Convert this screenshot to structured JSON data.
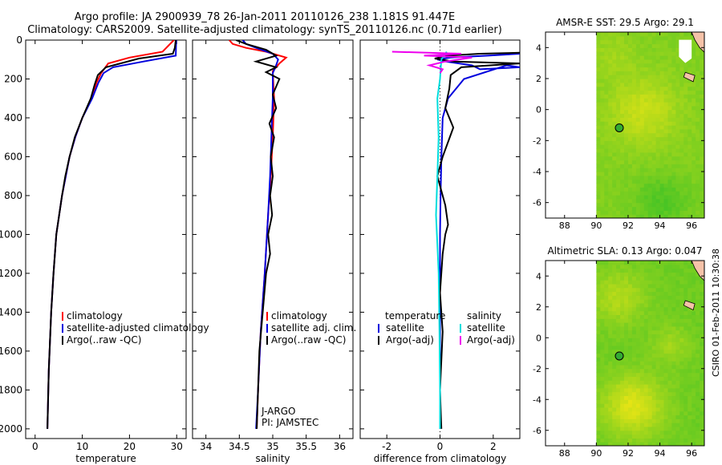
{
  "title_line1": "Argo profile: JA 2900939_78 26-Jan-2011 20110126_238 1.181S 91.447E",
  "title_line2": "Climatology: CARS2009. Satellite-adjusted climatology: synTS_20110126.nc (0.71d earlier)",
  "side_label": "CSIRO 01-Feb-2011 10:30:38",
  "chart_data": [
    {
      "type": "line",
      "xlabel": "temperature",
      "xlim": [
        -2,
        32
      ],
      "ylim": [
        0,
        2050
      ],
      "xticks": [
        0,
        10,
        20,
        30
      ],
      "yticks": [
        0,
        200,
        400,
        600,
        800,
        1000,
        1200,
        1400,
        1600,
        1800,
        2000
      ],
      "legend": [
        "climatology",
        "satellite-adjusted climatology",
        "Argo(..raw -QC)"
      ],
      "legend_placement": "lower-right",
      "series": [
        {
          "name": "climatology",
          "color": "#ff0000",
          "x": [
            29.4,
            27,
            20,
            15.5,
            14,
            13,
            12,
            10,
            8.5,
            7.3,
            6.5,
            5.7,
            4.5,
            3.9,
            3.4,
            2.9,
            2.6
          ],
          "y": [
            0,
            60,
            90,
            120,
            170,
            220,
            300,
            400,
            500,
            600,
            700,
            800,
            1000,
            1200,
            1400,
            1700,
            2000
          ]
        },
        {
          "name": "satellite-adjusted climatology",
          "color": "#0000dd",
          "x": [
            29.9,
            29.8,
            23,
            16.5,
            14.5,
            13.4,
            12.1,
            10,
            8.5,
            7.3,
            6.5,
            5.7,
            4.5,
            3.9,
            3.4,
            2.9,
            2.6
          ],
          "y": [
            0,
            80,
            110,
            140,
            170,
            220,
            300,
            400,
            500,
            600,
            700,
            800,
            1000,
            1200,
            1400,
            1700,
            2000
          ]
        },
        {
          "name": "Argo(..raw -QC)",
          "color": "#000000",
          "x": [
            29.8,
            29.6,
            29.2,
            22,
            15,
            13.3,
            12.6,
            11.8,
            10,
            8.4,
            7.3,
            6.4,
            5.7,
            4.5,
            3.9,
            3.4,
            2.9,
            2.6
          ],
          "y": [
            0,
            40,
            70,
            95,
            140,
            180,
            230,
            300,
            400,
            500,
            600,
            700,
            800,
            1000,
            1200,
            1400,
            1700,
            2000
          ]
        }
      ]
    },
    {
      "type": "line",
      "xlabel": "salinity",
      "xlim": [
        33.8,
        36.2
      ],
      "ylim": [
        0,
        2050
      ],
      "xticks": [
        34,
        34.5,
        35,
        35.5,
        36
      ],
      "yticks": [
        0,
        200,
        400,
        600,
        800,
        1000,
        1200,
        1400,
        1600,
        1800,
        2000
      ],
      "legend": [
        "climatology",
        "satellite adj. clim.",
        "Argo(..raw -QC)"
      ],
      "legend_placement": "lower-right",
      "annotations": [
        "J-ARGO",
        "PI: JAMSTEC"
      ],
      "series": [
        {
          "name": "climatology",
          "color": "#ff0000",
          "x": [
            34.35,
            34.4,
            34.6,
            34.9,
            35.2,
            35.1,
            35.0,
            35.02,
            35.0,
            34.97,
            34.93,
            34.88,
            34.82,
            34.78,
            34.76
          ],
          "y": [
            0,
            20,
            40,
            60,
            90,
            120,
            160,
            300,
            500,
            700,
            900,
            1200,
            1500,
            1800,
            2000
          ]
        },
        {
          "name": "satellite adj. clim.",
          "color": "#0000dd",
          "x": [
            34.55,
            34.6,
            34.75,
            35.0,
            35.08,
            35.05,
            35.0,
            35.0,
            34.98,
            34.96,
            34.93,
            34.88,
            34.82,
            34.78,
            34.75
          ],
          "y": [
            0,
            20,
            40,
            70,
            100,
            130,
            170,
            300,
            500,
            700,
            900,
            1200,
            1500,
            1800,
            2000
          ]
        },
        {
          "name": "Argo(..raw -QC)",
          "color": "#000000",
          "x": [
            34.45,
            34.6,
            34.9,
            35.05,
            34.75,
            35.05,
            34.9,
            35.1,
            35.0,
            35.05,
            34.95,
            35.02,
            34.97,
            35.0,
            34.96,
            34.99,
            34.93,
            34.96,
            34.9,
            34.85,
            34.8,
            34.78,
            34.76
          ],
          "y": [
            0,
            20,
            50,
            80,
            110,
            140,
            165,
            200,
            280,
            350,
            430,
            500,
            600,
            700,
            800,
            900,
            1000,
            1100,
            1200,
            1400,
            1600,
            1800,
            2000
          ]
        }
      ]
    },
    {
      "type": "line",
      "xlabel": "difference from climatology",
      "xlim": [
        -3,
        3
      ],
      "ylim": [
        0,
        2050
      ],
      "xticks": [
        -2,
        0,
        2
      ],
      "yticks": [
        0,
        200,
        400,
        600,
        800,
        1000,
        1200,
        1400,
        1600,
        1800,
        2000
      ],
      "legend_left_heading": "temperature",
      "legend_right_heading": "salinity",
      "legend_left": [
        "satellite",
        "Argo(-adj)"
      ],
      "legend_right": [
        "satellite",
        "Argo(-adj)"
      ],
      "legend_placement": "lower-right",
      "series": [
        {
          "name": "satellite",
          "quantity": "temperature",
          "color": "#0000dd",
          "x": [
            3,
            1.8,
            0.4,
            -0.1,
            0.2,
            1.2,
            1.5,
            3,
            2.5,
            0.9,
            0.3,
            0.1,
            0.05,
            0.02,
            0,
            0,
            0
          ],
          "y": [
            70,
            80,
            90,
            100,
            110,
            130,
            150,
            140,
            130,
            200,
            300,
            400,
            600,
            800,
            1000,
            1500,
            2000
          ]
        },
        {
          "name": "Argo(-adj)",
          "quantity": "temperature",
          "color": "#000000",
          "x": [
            3,
            1.5,
            0.3,
            -0.2,
            0.5,
            3,
            0.8,
            0.4,
            0.35,
            0.2,
            0.5,
            0.1,
            -0.1,
            0.2,
            0.3,
            0.2,
            0.1,
            0,
            0.1,
            0,
            0.05
          ],
          "y": [
            65,
            70,
            80,
            95,
            110,
            120,
            140,
            180,
            250,
            350,
            450,
            600,
            700,
            850,
            950,
            1000,
            1100,
            1300,
            1500,
            1800,
            2000
          ]
        },
        {
          "name": "satellite",
          "quantity": "salinity",
          "color": "#00dddd",
          "x": [
            0.25,
            0.15,
            0.05,
            0,
            -0.1,
            -0.05,
            -0.1,
            -0.15,
            -0.1,
            -0.05,
            -0.02,
            0,
            0
          ],
          "y": [
            60,
            80,
            100,
            200,
            300,
            500,
            700,
            900,
            1050,
            1200,
            1500,
            1800,
            2000
          ]
        },
        {
          "name": "Argo(-adj)",
          "quantity": "salinity",
          "color": "#ee00ee",
          "x": [
            -1.8,
            0.8,
            -0.6,
            1.2,
            0.2,
            -0.4,
            0.1,
            0
          ],
          "y": [
            60,
            70,
            80,
            90,
            110,
            130,
            150,
            170
          ]
        }
      ]
    },
    {
      "type": "heatmap",
      "title": "AMSR-E SST: 29.5  Argo: 29.1",
      "xlim": [
        86.8,
        96.8
      ],
      "ylim": [
        -7,
        5
      ],
      "xticks": [
        88,
        90,
        92,
        94,
        96
      ],
      "yticks": [
        -6,
        -4,
        -2,
        0,
        2,
        4
      ],
      "marker": {
        "lon": 91.447,
        "lat": -1.181
      }
    },
    {
      "type": "heatmap",
      "title": "Altimetric SLA: 0.13  Argo: 0.047",
      "xlim": [
        86.8,
        96.8
      ],
      "ylim": [
        -7,
        5
      ],
      "xticks": [
        88,
        90,
        92,
        94,
        96
      ],
      "yticks": [
        -6,
        -4,
        -2,
        0,
        2,
        4
      ],
      "marker": {
        "lon": 91.447,
        "lat": -1.181
      }
    }
  ]
}
